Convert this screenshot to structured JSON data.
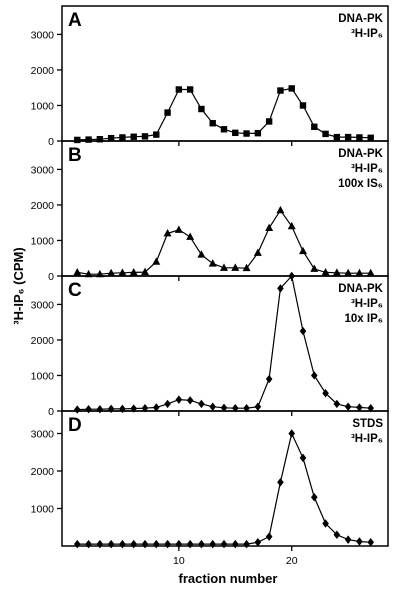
{
  "chart_data": {
    "type": "line",
    "ylabel": "³H-IP₆ (CPM)",
    "xlabel": "fraction number",
    "x_ticks": [
      10,
      20
    ],
    "xlim": [
      0,
      28
    ],
    "marker_color": "#000000",
    "panels": [
      {
        "letter": "A",
        "condition": [
          "DNA-PK",
          "³H-IP₆"
        ],
        "marker": "square",
        "ylim": [
          0,
          3800
        ],
        "y_ticks": [
          0,
          1000,
          2000,
          3000
        ],
        "x": [
          1,
          2,
          3,
          4,
          5,
          6,
          7,
          8,
          9,
          10,
          11,
          12,
          13,
          14,
          15,
          16,
          17,
          18,
          19,
          20,
          21,
          22,
          23,
          24,
          25,
          26,
          27
        ],
        "y": [
          30,
          40,
          50,
          80,
          100,
          120,
          130,
          180,
          800,
          1450,
          1450,
          900,
          500,
          330,
          230,
          210,
          220,
          550,
          1420,
          1480,
          1000,
          400,
          200,
          110,
          110,
          100,
          90
        ]
      },
      {
        "letter": "B",
        "condition": [
          "DNA-PK",
          "³H-IP₆",
          "100x IS₆"
        ],
        "marker": "triangle",
        "ylim": [
          0,
          3800
        ],
        "y_ticks": [
          0,
          1000,
          2000,
          3000
        ],
        "x": [
          1,
          2,
          3,
          4,
          5,
          6,
          7,
          8,
          9,
          10,
          11,
          12,
          13,
          14,
          15,
          16,
          17,
          18,
          19,
          20,
          21,
          22,
          23,
          24,
          25,
          26,
          27
        ],
        "y": [
          100,
          50,
          50,
          80,
          90,
          100,
          110,
          400,
          1200,
          1300,
          1100,
          600,
          350,
          230,
          230,
          220,
          650,
          1350,
          1850,
          1400,
          700,
          200,
          100,
          90,
          80,
          80,
          80
        ]
      },
      {
        "letter": "C",
        "condition": [
          "DNA-PK",
          "³H-IP₆",
          "10x IP₆"
        ],
        "marker": "diamond",
        "ylim": [
          0,
          3800
        ],
        "y_ticks": [
          0,
          1000,
          2000,
          3000
        ],
        "x": [
          1,
          2,
          3,
          4,
          5,
          6,
          7,
          8,
          9,
          10,
          11,
          12,
          13,
          14,
          15,
          16,
          17,
          18,
          19,
          20,
          21,
          22,
          23,
          24,
          25,
          26,
          27
        ],
        "y": [
          40,
          50,
          50,
          60,
          60,
          70,
          80,
          100,
          200,
          320,
          300,
          200,
          120,
          90,
          80,
          80,
          120,
          900,
          3450,
          3800,
          2250,
          1000,
          500,
          200,
          120,
          100,
          80
        ]
      },
      {
        "letter": "D",
        "condition": [
          "STDS",
          "³H-IP₆"
        ],
        "marker": "diamond",
        "ylim": [
          0,
          3600
        ],
        "y_ticks": [
          1000,
          2000,
          3000
        ],
        "x": [
          1,
          2,
          3,
          4,
          5,
          6,
          7,
          8,
          9,
          10,
          11,
          12,
          13,
          14,
          15,
          16,
          17,
          18,
          19,
          20,
          21,
          22,
          23,
          24,
          25,
          26,
          27
        ],
        "y": [
          50,
          50,
          50,
          50,
          50,
          50,
          50,
          50,
          50,
          50,
          50,
          50,
          50,
          50,
          50,
          50,
          100,
          250,
          1700,
          3000,
          2350,
          1300,
          600,
          300,
          170,
          120,
          100
        ]
      }
    ]
  }
}
